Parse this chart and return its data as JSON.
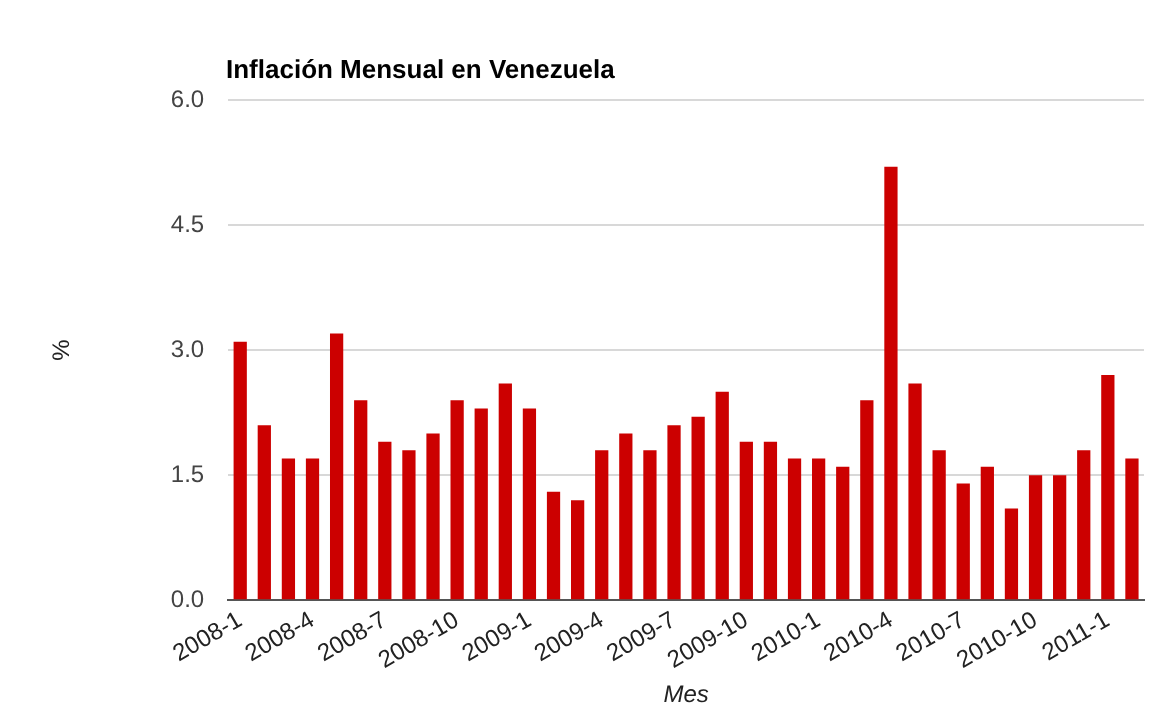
{
  "chart_data": {
    "type": "bar",
    "title": "Inflación Mensual en Venezuela",
    "xlabel": "Mes",
    "ylabel": "%",
    "categories": [
      "2008-1",
      null,
      null,
      "2008-4",
      null,
      null,
      "2008-7",
      null,
      null,
      "2008-10",
      null,
      null,
      "2009-1",
      null,
      null,
      "2009-4",
      null,
      null,
      "2009-7",
      null,
      null,
      "2009-10",
      null,
      null,
      "2010-1",
      null,
      null,
      "2010-4",
      null,
      null,
      "2010-7",
      null,
      null,
      "2010-10",
      null,
      null,
      "2011-1",
      null
    ],
    "values": [
      3.1,
      2.1,
      1.7,
      1.7,
      3.2,
      2.4,
      1.9,
      1.8,
      2.0,
      2.4,
      2.3,
      2.6,
      2.3,
      1.3,
      1.2,
      1.8,
      2.0,
      1.8,
      2.1,
      2.2,
      2.5,
      1.9,
      1.9,
      1.7,
      1.7,
      1.6,
      2.4,
      5.2,
      2.6,
      1.8,
      1.4,
      1.6,
      1.1,
      1.5,
      1.5,
      1.8,
      2.7,
      1.7
    ],
    "color": "#cc0000",
    "ylim": [
      0,
      6
    ],
    "yticks": [
      {
        "value": 0,
        "label": "0.0"
      },
      1.5,
      {
        "value": 3,
        "label": "3.0"
      },
      4.5,
      {
        "value": 6,
        "label": "6.0"
      }
    ],
    "grid": "y",
    "legend": false
  }
}
